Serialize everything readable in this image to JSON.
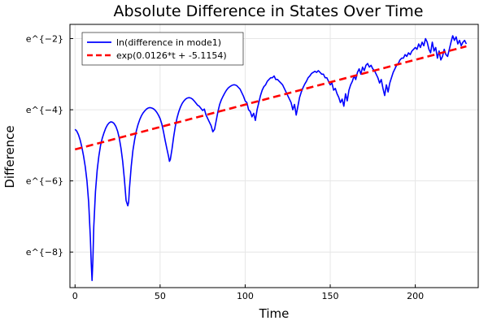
{
  "chart_data": {
    "type": "line",
    "title": "Absolute Difference in States Over Time",
    "xlabel": "Time",
    "ylabel": "Difference",
    "xlim": [
      -3,
      237
    ],
    "ylim": [
      -9,
      -1.6
    ],
    "x_ticks": [
      0,
      50,
      100,
      150,
      200
    ],
    "x_tick_labels": [
      "0",
      "50",
      "100",
      "150",
      "200"
    ],
    "y_ticks": [
      -8,
      -6,
      -4,
      -2
    ],
    "y_tick_labels": [
      "e^{−8}",
      "e^{−6}",
      "e^{−4}",
      "e^{−2}"
    ],
    "grid": true,
    "legend_position": "top-left",
    "series": [
      {
        "name": "ln(difference in mode1)",
        "color": "#0000ff",
        "style": "solid",
        "x": [
          0,
          1,
          2,
          3,
          4,
          5,
          6,
          7,
          8,
          9,
          9.5,
          10,
          10.5,
          11,
          12,
          13,
          14,
          15,
          16,
          17,
          18,
          19,
          20,
          21,
          22,
          23,
          24,
          25,
          26,
          27,
          28,
          29,
          30,
          31,
          31.5,
          32,
          33,
          34,
          35,
          36,
          37,
          38,
          39,
          40,
          41,
          42,
          43,
          44,
          45,
          46,
          47,
          48,
          49,
          50,
          51,
          52,
          53,
          54,
          55,
          55.5,
          56,
          57,
          58,
          59,
          60,
          61,
          62,
          63,
          64,
          65,
          66,
          67,
          68,
          69,
          70,
          71,
          72,
          73,
          74,
          75,
          76,
          77,
          78,
          79,
          80,
          81,
          82,
          83,
          84,
          85,
          86,
          87,
          88,
          89,
          90,
          91,
          92,
          93,
          94,
          95,
          96,
          97,
          98,
          99,
          100,
          101,
          102,
          103,
          104,
          105,
          106,
          107,
          108,
          109,
          110,
          111,
          112,
          113,
          114,
          115,
          116,
          117,
          118,
          119,
          120,
          121,
          122,
          123,
          124,
          125,
          126,
          127,
          128,
          129,
          130,
          131,
          132,
          133,
          134,
          135,
          136,
          137,
          138,
          139,
          140,
          141,
          142,
          143,
          144,
          145,
          146,
          147,
          148,
          149,
          150,
          151,
          152,
          153,
          154,
          155,
          156,
          157,
          158,
          159,
          160,
          161,
          162,
          163,
          164,
          165,
          166,
          167,
          168,
          169,
          170,
          171,
          172,
          173,
          174,
          175,
          176,
          177,
          178,
          179,
          180,
          181,
          182,
          183,
          184,
          185,
          186,
          187,
          188,
          189,
          190,
          191,
          192,
          193,
          194,
          195,
          196,
          197,
          198,
          199,
          200,
          201,
          202,
          203,
          204,
          205,
          206,
          207,
          208,
          209,
          210,
          211,
          212,
          213,
          214,
          215,
          216,
          217,
          218,
          219,
          220,
          221,
          222,
          223,
          224,
          225,
          226,
          227,
          228,
          229,
          230
        ],
        "y": [
          -4.55,
          -4.6,
          -4.7,
          -4.85,
          -5.05,
          -5.3,
          -5.6,
          -6.0,
          -6.6,
          -7.6,
          -8.3,
          -8.8,
          -8.2,
          -7.3,
          -6.3,
          -5.7,
          -5.3,
          -5.0,
          -4.8,
          -4.65,
          -4.52,
          -4.43,
          -4.37,
          -4.34,
          -4.35,
          -4.39,
          -4.47,
          -4.6,
          -4.8,
          -5.08,
          -5.45,
          -5.95,
          -6.55,
          -6.7,
          -6.6,
          -6.2,
          -5.6,
          -5.15,
          -4.85,
          -4.6,
          -4.42,
          -4.28,
          -4.17,
          -4.09,
          -4.03,
          -3.98,
          -3.95,
          -3.94,
          -3.95,
          -3.97,
          -4.01,
          -4.07,
          -4.15,
          -4.25,
          -4.4,
          -4.62,
          -4.87,
          -5.1,
          -5.32,
          -5.45,
          -5.4,
          -5.1,
          -4.75,
          -4.45,
          -4.22,
          -4.05,
          -3.92,
          -3.82,
          -3.75,
          -3.7,
          -3.67,
          -3.66,
          -3.67,
          -3.7,
          -3.75,
          -3.81,
          -3.87,
          -3.9,
          -3.96,
          -4.02,
          -3.98,
          -4.15,
          -4.25,
          -4.35,
          -4.45,
          -4.62,
          -4.55,
          -4.3,
          -4.05,
          -3.85,
          -3.72,
          -3.62,
          -3.53,
          -3.45,
          -3.39,
          -3.35,
          -3.32,
          -3.3,
          -3.3,
          -3.32,
          -3.37,
          -3.42,
          -3.52,
          -3.62,
          -3.75,
          -3.8,
          -4.0,
          -4.05,
          -4.2,
          -4.1,
          -4.3,
          -4.0,
          -3.8,
          -3.6,
          -3.45,
          -3.35,
          -3.3,
          -3.2,
          -3.15,
          -3.1,
          -3.1,
          -3.05,
          -3.15,
          -3.15,
          -3.2,
          -3.25,
          -3.3,
          -3.4,
          -3.5,
          -3.6,
          -3.7,
          -3.8,
          -4.0,
          -3.85,
          -4.15,
          -3.9,
          -3.65,
          -3.5,
          -3.38,
          -3.28,
          -3.2,
          -3.1,
          -3.05,
          -2.98,
          -2.95,
          -2.92,
          -2.95,
          -2.9,
          -2.95,
          -3.0,
          -3.0,
          -3.1,
          -3.1,
          -3.2,
          -3.3,
          -3.25,
          -3.45,
          -3.4,
          -3.55,
          -3.65,
          -3.8,
          -3.7,
          -3.9,
          -3.55,
          -3.75,
          -3.45,
          -3.3,
          -3.2,
          -3.05,
          -3.15,
          -2.95,
          -2.85,
          -3.0,
          -2.8,
          -2.9,
          -2.75,
          -2.7,
          -2.8,
          -2.75,
          -2.85,
          -2.9,
          -3.0,
          -3.1,
          -3.25,
          -3.15,
          -3.4,
          -3.6,
          -3.3,
          -3.5,
          -3.25,
          -3.1,
          -2.95,
          -2.85,
          -2.75,
          -2.7,
          -2.6,
          -2.55,
          -2.55,
          -2.45,
          -2.5,
          -2.4,
          -2.45,
          -2.35,
          -2.3,
          -2.25,
          -2.3,
          -2.15,
          -2.25,
          -2.1,
          -2.2,
          -2.0,
          -2.1,
          -2.3,
          -2.4,
          -2.1,
          -2.35,
          -2.25,
          -2.55,
          -2.35,
          -2.6,
          -2.5,
          -2.3,
          -2.45,
          -2.5,
          -2.3,
          -2.1,
          -1.92,
          -2.05,
          -1.95,
          -2.15,
          -2.05,
          -2.2,
          -2.1,
          -2.05,
          -2.15
        ]
      },
      {
        "name": "exp(0.0126*t + -5.1154)",
        "color": "#ff0000",
        "style": "dashed",
        "x": [
          0,
          230
        ],
        "y": [
          -5.1154,
          -2.2174
        ]
      }
    ]
  }
}
